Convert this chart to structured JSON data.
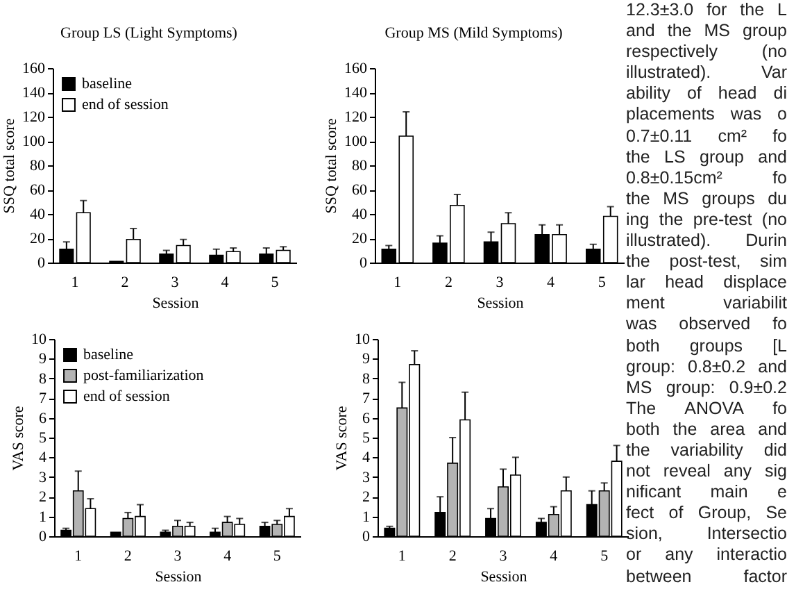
{
  "chart_data": [
    {
      "type": "bar",
      "title": "Group LS (Light Symptoms)",
      "xlabel": "Session",
      "ylabel": "SSQ total score",
      "categories": [
        "1",
        "2",
        "3",
        "4",
        "5"
      ],
      "ylim": [
        0,
        160
      ],
      "yticks": [
        0,
        20,
        40,
        60,
        80,
        100,
        120,
        140,
        160
      ],
      "legend": "top left",
      "series": [
        {
          "name": "baseline",
          "color": "#000000",
          "values": [
            11,
            1,
            7,
            6,
            7
          ],
          "errors": [
            [
              11,
              17
            ],
            null,
            [
              7,
              10
            ],
            [
              6,
              11
            ],
            [
              7,
              12
            ]
          ]
        },
        {
          "name": "end of session",
          "color": "#ffffff",
          "values": [
            41,
            19,
            14,
            9,
            10
          ],
          "errors": [
            [
              41,
              51
            ],
            [
              19,
              28
            ],
            [
              14,
              19
            ],
            [
              9,
              12
            ],
            [
              10,
              13
            ]
          ]
        }
      ]
    },
    {
      "type": "bar",
      "title": "Group MS (Mild Symptoms)",
      "xlabel": "Session",
      "ylabel": "SSQ total score",
      "categories": [
        "1",
        "2",
        "3",
        "4",
        "5"
      ],
      "ylim": [
        0,
        160
      ],
      "yticks": [
        0,
        20,
        40,
        60,
        80,
        100,
        120,
        140,
        160
      ],
      "series": [
        {
          "color": "#000000",
          "values": [
            11,
            16,
            17,
            23,
            11
          ],
          "errors": [
            [
              11,
              14
            ],
            [
              16,
              22
            ],
            [
              17,
              25
            ],
            [
              23,
              31
            ],
            [
              11,
              15
            ]
          ]
        },
        {
          "color": "#ffffff",
          "values": [
            104,
            47,
            32,
            23,
            38
          ],
          "errors": [
            [
              104,
              124
            ],
            [
              47,
              56
            ],
            [
              32,
              41
            ],
            [
              23,
              31
            ],
            [
              38,
              46
            ]
          ]
        }
      ]
    },
    {
      "type": "bar",
      "xlabel": "Session",
      "ylabel": "VAS score",
      "categories": [
        "1",
        "2",
        "3",
        "4",
        "5"
      ],
      "ylim": [
        0,
        10
      ],
      "yticks": [
        0,
        1,
        2,
        3,
        4,
        5,
        6,
        7,
        8,
        9,
        10
      ],
      "legend": "top left",
      "series": [
        {
          "name": "baseline",
          "color": "#000000",
          "values": [
            0.3,
            0.2,
            0.2,
            0.2,
            0.5
          ],
          "errors": [
            [
              0.3,
              0.4
            ],
            null,
            [
              0.2,
              0.3
            ],
            [
              0.2,
              0.4
            ],
            [
              0.5,
              0.7
            ]
          ]
        },
        {
          "name": "post-familiarization",
          "color": "#b3b3b3",
          "values": [
            2.3,
            0.9,
            0.5,
            0.7,
            0.6
          ],
          "errors": [
            [
              2.3,
              3.3
            ],
            [
              0.9,
              1.2
            ],
            [
              0.5,
              0.8
            ],
            [
              0.7,
              1.0
            ],
            [
              0.6,
              0.8
            ]
          ]
        },
        {
          "name": "end of session",
          "color": "#ffffff",
          "values": [
            1.4,
            1.0,
            0.5,
            0.6,
            1.0
          ],
          "errors": [
            [
              1.4,
              1.9
            ],
            [
              1.0,
              1.6
            ],
            [
              0.5,
              0.7
            ],
            [
              0.6,
              0.9
            ],
            [
              1.0,
              1.4
            ]
          ]
        }
      ]
    },
    {
      "type": "bar",
      "xlabel": "Session",
      "ylabel": "VAS score",
      "categories": [
        "1",
        "2",
        "3",
        "4",
        "5"
      ],
      "ylim": [
        0,
        10
      ],
      "yticks": [
        0,
        1,
        2,
        3,
        4,
        5,
        6,
        7,
        8,
        9,
        10
      ],
      "series": [
        {
          "color": "#000000",
          "values": [
            0.4,
            1.2,
            0.9,
            0.7,
            1.6
          ],
          "errors": [
            [
              0.4,
              0.5
            ],
            [
              1.2,
              2.0
            ],
            [
              0.9,
              1.4
            ],
            [
              0.7,
              0.9
            ],
            [
              1.6,
              2.3
            ]
          ]
        },
        {
          "color": "#b3b3b3",
          "values": [
            6.5,
            3.7,
            2.5,
            1.1,
            2.3
          ],
          "errors": [
            [
              6.5,
              7.8
            ],
            [
              3.7,
              5.0
            ],
            [
              2.5,
              3.4
            ],
            [
              1.1,
              1.5
            ],
            [
              2.3,
              2.7
            ]
          ]
        },
        {
          "color": "#ffffff",
          "values": [
            8.7,
            5.9,
            3.1,
            2.3,
            3.8
          ],
          "errors": [
            [
              8.7,
              9.4
            ],
            [
              5.9,
              7.3
            ],
            [
              3.1,
              4.0
            ],
            [
              2.3,
              3.0
            ],
            [
              3.8,
              4.6
            ]
          ]
        }
      ]
    },
    {
      "type": "other",
      "annotations": [
        "12.3±3.0 for the L",
        "and the MS group",
        "respectively (no",
        "illustrated). Var",
        "ability of head di",
        "placements was o",
        "0.7±0.11 cm² fo",
        "the LS group and",
        "0.8±0.15cm² fo",
        "the MS groups du",
        "ing the pre-test (no",
        "illustrated). Durin",
        "the post-test, sim",
        "lar head displace",
        "ment variabilit",
        "was observed fo",
        "both groups [L",
        "group: 0.8±0.2 and",
        "MS group: 0.9±0.2",
        "The ANOVA fo",
        "both the area and",
        "the variability did",
        "not reveal any sig",
        "nificant main e",
        "fect of Group, Se",
        "sion, Intersectio",
        "or any interactio",
        "between factor"
      ]
    }
  ]
}
